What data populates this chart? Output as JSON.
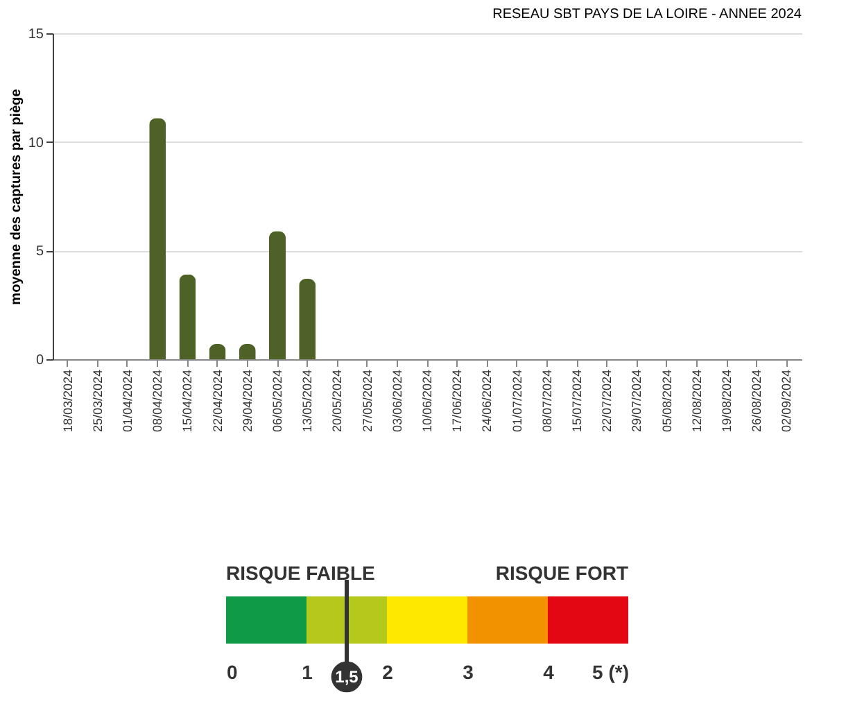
{
  "chart_data": [
    {
      "type": "bar",
      "title": "RESEAU SBT PAYS DE LA LOIRE - ANNEE 2024",
      "ylabel": "moyenne des captures par piège",
      "categories": [
        "18/03/2024",
        "25/03/2024",
        "01/04/2024",
        "08/04/2024",
        "15/04/2024",
        "22/04/2024",
        "29/04/2024",
        "06/05/2024",
        "13/05/2024",
        "20/05/2024",
        "27/05/2024",
        "03/06/2024",
        "10/06/2024",
        "17/06/2024",
        "24/06/2024",
        "01/07/2024",
        "08/07/2024",
        "15/07/2024",
        "22/07/2024",
        "29/07/2024",
        "05/08/2024",
        "12/08/2024",
        "19/08/2024",
        "26/08/2024",
        "02/09/2024"
      ],
      "values": [
        null,
        null,
        null,
        11.1,
        3.9,
        0.7,
        0.7,
        5.9,
        3.7,
        null,
        null,
        null,
        null,
        null,
        null,
        null,
        null,
        null,
        null,
        null,
        null,
        null,
        null,
        null,
        null
      ],
      "color": "#4e6228",
      "ylim": [
        0,
        15
      ],
      "yticks": [
        0,
        5,
        10,
        15
      ],
      "grid": "y"
    },
    {
      "type": "bar",
      "orientation": "horizontal",
      "stacked": true,
      "categories": [
        null
      ],
      "series": [
        {
          "color": "#0f9a48",
          "values": [
            1
          ]
        },
        {
          "color": "#b5c81c",
          "values": [
            1
          ]
        },
        {
          "color": "#ffe800",
          "values": [
            1
          ]
        },
        {
          "color": "#f39200",
          "values": [
            1
          ]
        },
        {
          "color": "#e30613",
          "values": [
            1
          ]
        }
      ],
      "xlim": [
        0,
        5
      ],
      "xticks": [
        0,
        1,
        2,
        3,
        4,
        {
          "value": 5,
          "label": "5 (*)"
        }
      ],
      "tick_labels": "x",
      "grid": false,
      "legend": false,
      "ref_lines": [
        {
          "axis": "x",
          "value": 1.5,
          "label": "1,5",
          "color": "#333333"
        }
      ],
      "annotations": [
        "RISQUE FAIBLE",
        "RISQUE FORT"
      ]
    }
  ]
}
